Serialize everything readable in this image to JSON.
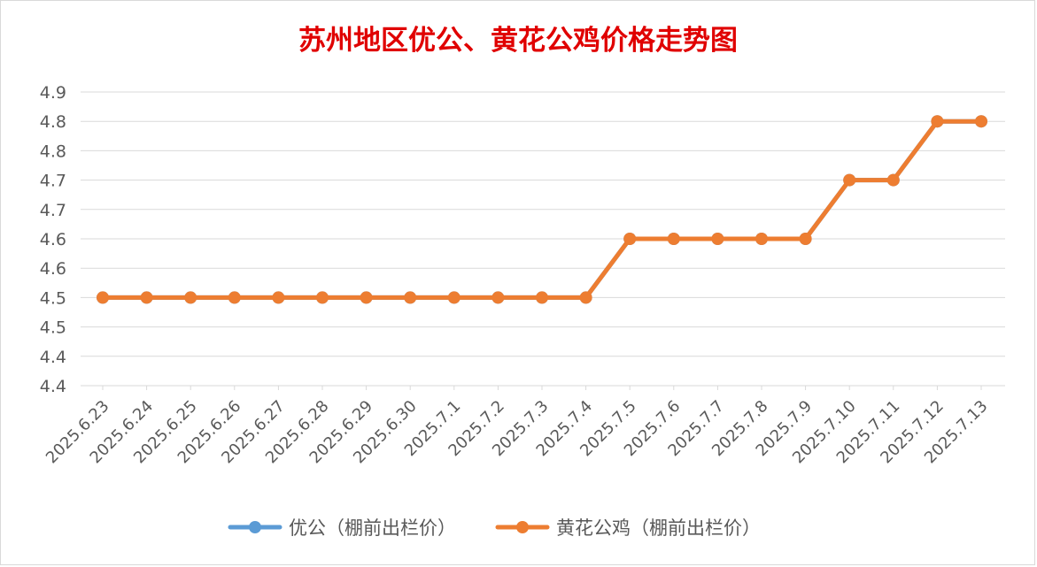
{
  "chart_data": {
    "type": "line",
    "title": "苏州地区优公、黄花公鸡价格走势图",
    "title_color": "#e00000",
    "x": [
      "2025.6.23",
      "2025.6.24",
      "2025.6.25",
      "2025.6.26",
      "2025.6.27",
      "2025.6.28",
      "2025.6.29",
      "2025.6.30",
      "2025.7.1",
      "2025.7.2",
      "2025.7.3",
      "2025.7.4",
      "2025.7.5",
      "2025.7.6",
      "2025.7.7",
      "2025.7.8",
      "2025.7.9",
      "2025.7.10",
      "2025.7.11",
      "2025.7.12",
      "2025.7.13"
    ],
    "series": [
      {
        "name": "优公（棚前出栏价）",
        "color": "#5b9bd5",
        "values": [
          4.5,
          4.5,
          4.5,
          4.5,
          4.5,
          4.5,
          4.5,
          4.5,
          4.5,
          4.5,
          4.5,
          4.5,
          4.6,
          4.6,
          4.6,
          4.6,
          4.6,
          4.7,
          4.7,
          4.8,
          4.8
        ]
      },
      {
        "name": "黄花公鸡（棚前出栏价）",
        "color": "#ed7d31",
        "values": [
          4.5,
          4.5,
          4.5,
          4.5,
          4.5,
          4.5,
          4.5,
          4.5,
          4.5,
          4.5,
          4.5,
          4.5,
          4.6,
          4.6,
          4.6,
          4.6,
          4.6,
          4.7,
          4.7,
          4.8,
          4.8
        ]
      }
    ],
    "ylim": [
      4.35,
      4.85
    ],
    "y_tick_values": [
      4.35,
      4.4,
      4.45,
      4.5,
      4.55,
      4.6,
      4.65,
      4.7,
      4.75,
      4.8,
      4.85
    ],
    "y_tick_labels": [
      "4.4",
      "4.4",
      "4.5",
      "4.5",
      "4.6",
      "4.6",
      "4.7",
      "4.7",
      "4.8",
      "4.8",
      "4.9"
    ],
    "xlabel": "",
    "ylabel": "",
    "grid": true,
    "legend_position": "bottom"
  }
}
